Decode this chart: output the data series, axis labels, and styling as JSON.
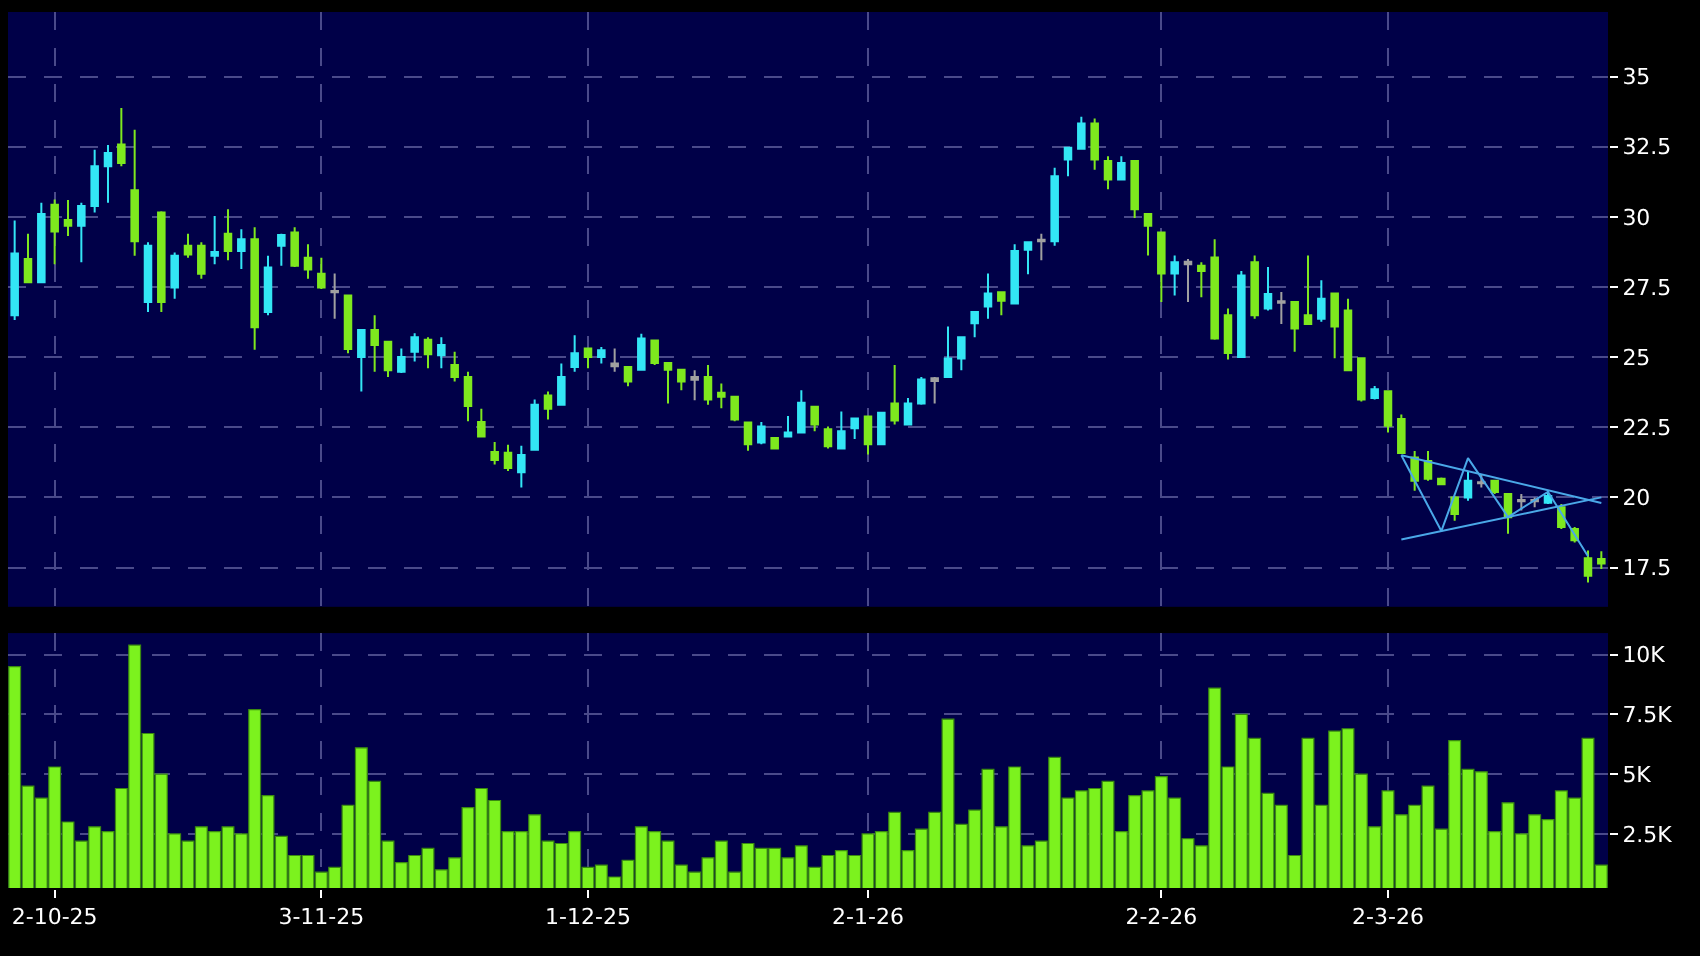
{
  "chart_data": [
    {
      "type": "candlestick",
      "categories": [
        null,
        null,
        null,
        "2-10-25",
        null,
        null,
        null,
        null,
        null,
        null,
        null,
        null,
        null,
        null,
        null,
        null,
        null,
        null,
        null,
        null,
        null,
        null,
        null,
        "3-11-25",
        null,
        null,
        null,
        null,
        null,
        null,
        null,
        null,
        null,
        null,
        null,
        null,
        null,
        null,
        null,
        null,
        null,
        null,
        null,
        "1-12-25",
        null,
        null,
        null,
        null,
        null,
        null,
        null,
        null,
        null,
        null,
        null,
        null,
        null,
        null,
        null,
        null,
        null,
        null,
        null,
        null,
        "2-1-26",
        null,
        null,
        null,
        null,
        null,
        null,
        null,
        null,
        null,
        null,
        null,
        null,
        null,
        null,
        null,
        null,
        null,
        null,
        null,
        null,
        null,
        "2-2-26",
        null,
        null,
        null,
        null,
        null,
        null,
        null,
        null,
        null,
        null,
        null,
        null,
        null,
        null,
        null,
        null,
        "2-3-26",
        null,
        null,
        null,
        null,
        null,
        null,
        null,
        null,
        null,
        null,
        null,
        null,
        null,
        null,
        null,
        null
      ],
      "ohlc": [
        [
          26.49,
          29.87,
          26.32,
          28.69
        ],
        [
          28.5,
          29.4,
          27.67,
          27.67
        ],
        [
          27.67,
          30.5,
          27.67,
          30.1
        ],
        [
          30.43,
          30.62,
          28.31,
          29.48
        ],
        [
          29.89,
          30.6,
          29.32,
          29.68
        ],
        [
          29.68,
          30.5,
          28.38,
          30.39
        ],
        [
          30.39,
          32.39,
          30.15,
          31.8
        ],
        [
          31.8,
          32.56,
          30.5,
          32.27
        ],
        [
          32.58,
          33.88,
          31.8,
          31.92
        ],
        [
          30.95,
          33.1,
          28.61,
          29.13
        ],
        [
          26.96,
          29.09,
          26.61,
          28.97
        ],
        [
          30.15,
          30.2,
          26.61,
          26.96
        ],
        [
          27.48,
          28.73,
          27.08,
          28.61
        ],
        [
          28.97,
          29.4,
          28.54,
          28.66
        ],
        [
          28.97,
          29.09,
          27.79,
          27.97
        ],
        [
          28.61,
          30.03,
          28.31,
          28.75
        ],
        [
          29.4,
          30.27,
          28.45,
          28.78
        ],
        [
          28.78,
          29.56,
          28.14,
          29.2
        ],
        [
          29.2,
          29.63,
          25.26,
          26.06
        ],
        [
          26.61,
          28.61,
          26.49,
          28.19
        ],
        [
          28.97,
          29.4,
          28.26,
          29.35
        ],
        [
          29.44,
          29.63,
          28.21,
          28.26
        ],
        [
          28.54,
          29.02,
          27.79,
          28.12
        ],
        [
          27.97,
          28.54,
          27.43,
          27.48
        ],
        [
          27.36,
          27.98,
          26.37,
          27.31
        ],
        [
          27.2,
          27.2,
          25.14,
          25.29
        ],
        [
          25.0,
          25.97,
          23.77,
          25.97
        ],
        [
          25.97,
          26.49,
          24.48,
          25.43
        ],
        [
          25.55,
          25.55,
          24.29,
          24.53
        ],
        [
          24.48,
          25.31,
          24.43,
          25.0
        ],
        [
          25.19,
          25.85,
          24.84,
          25.71
        ],
        [
          25.62,
          25.71,
          24.6,
          25.1
        ],
        [
          25.07,
          25.71,
          24.6,
          25.43
        ],
        [
          24.72,
          25.19,
          24.13,
          24.29
        ],
        [
          24.29,
          24.48,
          22.71,
          23.26
        ],
        [
          22.69,
          23.16,
          22.17,
          22.17
        ],
        [
          21.62,
          21.97,
          21.17,
          21.33
        ],
        [
          21.59,
          21.88,
          20.94,
          21.05
        ],
        [
          20.9,
          21.84,
          20.35,
          21.51
        ],
        [
          21.7,
          23.49,
          21.7,
          23.3
        ],
        [
          23.63,
          23.77,
          22.78,
          23.16
        ],
        [
          23.3,
          24.77,
          23.3,
          24.29
        ],
        [
          24.65,
          25.78,
          24.48,
          25.14
        ],
        [
          25.31,
          25.31,
          24.6,
          25.0
        ],
        [
          25.0,
          25.36,
          24.77,
          25.24
        ],
        [
          24.77,
          25.31,
          24.48,
          24.67
        ],
        [
          24.65,
          24.65,
          23.96,
          24.13
        ],
        [
          24.55,
          25.83,
          24.55,
          25.66
        ],
        [
          25.59,
          25.59,
          24.72,
          24.79
        ],
        [
          24.79,
          24.79,
          23.35,
          24.55
        ],
        [
          24.55,
          24.55,
          23.82,
          24.13
        ],
        [
          24.29,
          24.53,
          23.46,
          24.19
        ],
        [
          24.29,
          24.72,
          23.3,
          23.49
        ],
        [
          23.73,
          24.06,
          23.18,
          23.59
        ],
        [
          23.59,
          23.59,
          22.71,
          22.78
        ],
        [
          22.67,
          22.67,
          21.66,
          21.89
        ],
        [
          21.96,
          22.69,
          21.89,
          22.53
        ],
        [
          22.12,
          22.12,
          21.74,
          21.74
        ],
        [
          22.17,
          22.9,
          22.17,
          22.31
        ],
        [
          22.31,
          23.82,
          22.31,
          23.37
        ],
        [
          23.23,
          23.23,
          22.36,
          22.6
        ],
        [
          22.43,
          22.53,
          21.74,
          21.82
        ],
        [
          21.74,
          23.06,
          21.74,
          22.36
        ],
        [
          22.46,
          22.81,
          22.08,
          22.81
        ],
        [
          22.88,
          22.88,
          21.53,
          21.89
        ],
        [
          21.89,
          23.02,
          21.89,
          23.02
        ],
        [
          23.35,
          24.72,
          22.6,
          22.74
        ],
        [
          22.6,
          23.54,
          22.6,
          23.35
        ],
        [
          23.35,
          24.29,
          23.3,
          24.2
        ],
        [
          24.25,
          24.29,
          23.35,
          24.15
        ],
        [
          24.29,
          26.09,
          24.29,
          24.95
        ],
        [
          24.95,
          25.71,
          24.53,
          25.71
        ],
        [
          26.21,
          26.61,
          25.71,
          26.61
        ],
        [
          26.8,
          27.98,
          26.37,
          27.27
        ],
        [
          27.31,
          27.31,
          26.49,
          27.01
        ],
        [
          26.91,
          29.02,
          26.91,
          28.78
        ],
        [
          28.83,
          29.09,
          27.95,
          29.09
        ],
        [
          29.13,
          29.4,
          28.45,
          29.18
        ],
        [
          29.13,
          31.75,
          28.97,
          31.45
        ],
        [
          32.04,
          32.46,
          31.45,
          32.46
        ],
        [
          32.43,
          33.57,
          32.39,
          33.33
        ],
        [
          33.33,
          33.5,
          31.68,
          32.04
        ],
        [
          31.99,
          32.16,
          30.98,
          31.33
        ],
        [
          31.33,
          32.16,
          31.33,
          31.92
        ],
        [
          31.99,
          31.99,
          29.96,
          30.27
        ],
        [
          30.1,
          30.1,
          28.62,
          29.68
        ],
        [
          29.44,
          29.44,
          26.96,
          27.98
        ],
        [
          27.98,
          28.62,
          27.2,
          28.38
        ],
        [
          28.4,
          28.5,
          26.96,
          28.31
        ],
        [
          28.26,
          28.38,
          27.13,
          28.07
        ],
        [
          28.55,
          29.2,
          25.62,
          25.66
        ],
        [
          26.49,
          26.73,
          24.91,
          25.15
        ],
        [
          25.0,
          28.07,
          25.0,
          27.91
        ],
        [
          28.38,
          28.62,
          26.37,
          26.49
        ],
        [
          26.73,
          28.21,
          26.66,
          27.25
        ],
        [
          26.99,
          27.32,
          26.18,
          26.94
        ],
        [
          26.96,
          26.96,
          25.19,
          26.02
        ],
        [
          26.49,
          28.62,
          26.14,
          26.18
        ],
        [
          26.37,
          27.74,
          26.26,
          27.08
        ],
        [
          27.27,
          27.27,
          24.96,
          26.09
        ],
        [
          26.66,
          27.08,
          24.53,
          24.53
        ],
        [
          24.96,
          24.96,
          23.42,
          23.49
        ],
        [
          23.54,
          23.97,
          23.49,
          23.85
        ],
        [
          23.78,
          23.78,
          22.31,
          22.55
        ],
        [
          22.79,
          22.95,
          21.58,
          21.58
        ],
        [
          21.42,
          21.65,
          20.24,
          20.59
        ],
        [
          21.3,
          21.65,
          20.59,
          20.66
        ],
        [
          20.66,
          20.71,
          20.47,
          20.47
        ],
        [
          20.0,
          20.05,
          19.17,
          19.41
        ],
        [
          20.0,
          20.94,
          19.88,
          20.59
        ],
        [
          20.54,
          20.83,
          20.35,
          20.5
        ],
        [
          20.59,
          20.59,
          20.12,
          20.19
        ],
        [
          20.12,
          20.12,
          18.7,
          19.29
        ],
        [
          19.91,
          20.12,
          19.53,
          19.86
        ],
        [
          19.91,
          20.0,
          19.65,
          19.86
        ],
        [
          19.81,
          20.24,
          19.76,
          20.05
        ],
        [
          19.65,
          19.76,
          18.87,
          18.94
        ],
        [
          18.87,
          18.94,
          18.39,
          18.47
        ],
        [
          17.83,
          18.11,
          16.97,
          17.21
        ],
        [
          17.8,
          18.08,
          17.45,
          17.64
        ]
      ],
      "colors": [
        "#33e6f5",
        "#7ee81e",
        "#33e6f5",
        "#7ee81e",
        "#7ee81e",
        "#33e6f5",
        "#33e6f5",
        "#33e6f5",
        "#7ee81e",
        "#7ee81e",
        "#33e6f5",
        "#7ee81e",
        "#33e6f5",
        "#7ee81e",
        "#7ee81e",
        "#33e6f5",
        "#7ee81e",
        "#33e6f5",
        "#7ee81e",
        "#33e6f5",
        "#33e6f5",
        "#7ee81e",
        "#7ee81e",
        "#7ee81e",
        "#a0a0a0",
        "#7ee81e",
        "#33e6f5",
        "#7ee81e",
        "#7ee81e",
        "#33e6f5",
        "#33e6f5",
        "#7ee81e",
        "#33e6f5",
        "#7ee81e",
        "#7ee81e",
        "#7ee81e",
        "#7ee81e",
        "#7ee81e",
        "#33e6f5",
        "#33e6f5",
        "#7ee81e",
        "#33e6f5",
        "#33e6f5",
        "#7ee81e",
        "#33e6f5",
        "#a0a0a0",
        "#7ee81e",
        "#33e6f5",
        "#7ee81e",
        "#7ee81e",
        "#7ee81e",
        "#a0a0a0",
        "#7ee81e",
        "#7ee81e",
        "#7ee81e",
        "#7ee81e",
        "#33e6f5",
        "#7ee81e",
        "#33e6f5",
        "#33e6f5",
        "#7ee81e",
        "#7ee81e",
        "#33e6f5",
        "#33e6f5",
        "#7ee81e",
        "#33e6f5",
        "#7ee81e",
        "#33e6f5",
        "#33e6f5",
        "#a0a0a0",
        "#33e6f5",
        "#33e6f5",
        "#33e6f5",
        "#33e6f5",
        "#7ee81e",
        "#33e6f5",
        "#33e6f5",
        "#a0a0a0",
        "#33e6f5",
        "#33e6f5",
        "#33e6f5",
        "#7ee81e",
        "#7ee81e",
        "#33e6f5",
        "#7ee81e",
        "#7ee81e",
        "#7ee81e",
        "#33e6f5",
        "#a0a0a0",
        "#7ee81e",
        "#7ee81e",
        "#7ee81e",
        "#33e6f5",
        "#7ee81e",
        "#33e6f5",
        "#a0a0a0",
        "#7ee81e",
        "#7ee81e",
        "#33e6f5",
        "#7ee81e",
        "#7ee81e",
        "#7ee81e",
        "#33e6f5",
        "#7ee81e",
        "#7ee81e",
        "#7ee81e",
        "#7ee81e",
        "#7ee81e",
        "#7ee81e",
        "#33e6f5",
        "#a0a0a0",
        "#7ee81e",
        "#7ee81e",
        "#a0a0a0",
        "#a0a0a0",
        "#33e6f5",
        "#7ee81e",
        "#7ee81e",
        "#7ee81e",
        "#7ee81e"
      ],
      "series": [
        {
          "type": "line",
          "color": "#4aa8e8",
          "values": [
            null,
            null,
            null,
            null,
            null,
            null,
            null,
            null,
            null,
            null,
            null,
            null,
            null,
            null,
            null,
            null,
            null,
            null,
            null,
            null,
            null,
            null,
            null,
            null,
            null,
            null,
            null,
            null,
            null,
            null,
            null,
            null,
            null,
            null,
            null,
            null,
            null,
            null,
            null,
            null,
            null,
            null,
            null,
            null,
            null,
            null,
            null,
            null,
            null,
            null,
            null,
            null,
            null,
            null,
            null,
            null,
            null,
            null,
            null,
            null,
            null,
            null,
            null,
            null,
            null,
            null,
            null,
            null,
            null,
            null,
            null,
            null,
            null,
            null,
            null,
            null,
            null,
            null,
            null,
            null,
            null,
            null,
            null,
            null,
            null,
            null,
            null,
            null,
            null,
            null,
            null,
            null,
            null,
            null,
            null,
            null,
            null,
            null,
            null,
            null,
            null,
            null,
            null,
            null,
            21.5,
            null,
            null,
            null,
            null,
            null,
            null,
            null,
            null,
            null,
            null,
            null,
            null,
            null,
            null,
            19.8
          ]
        },
        {
          "type": "line",
          "color": "#4aa8e8",
          "values": [
            null,
            null,
            null,
            null,
            null,
            null,
            null,
            null,
            null,
            null,
            null,
            null,
            null,
            null,
            null,
            null,
            null,
            null,
            null,
            null,
            null,
            null,
            null,
            null,
            null,
            null,
            null,
            null,
            null,
            null,
            null,
            null,
            null,
            null,
            null,
            null,
            null,
            null,
            null,
            null,
            null,
            null,
            null,
            null,
            null,
            null,
            null,
            null,
            null,
            null,
            null,
            null,
            null,
            null,
            null,
            null,
            null,
            null,
            null,
            null,
            null,
            null,
            null,
            null,
            null,
            null,
            null,
            null,
            null,
            null,
            null,
            null,
            null,
            null,
            null,
            null,
            null,
            null,
            null,
            null,
            null,
            null,
            null,
            null,
            null,
            null,
            null,
            null,
            null,
            null,
            null,
            null,
            null,
            null,
            null,
            null,
            null,
            null,
            null,
            null,
            null,
            null,
            null,
            null,
            18.5,
            null,
            null,
            null,
            null,
            null,
            null,
            null,
            null,
            null,
            null,
            null,
            null,
            null,
            null,
            20.0
          ]
        },
        {
          "type": "line",
          "color": "#4aa8e8",
          "values": [
            null,
            null,
            null,
            null,
            null,
            null,
            null,
            null,
            null,
            null,
            null,
            null,
            null,
            null,
            null,
            null,
            null,
            null,
            null,
            null,
            null,
            null,
            null,
            null,
            null,
            null,
            null,
            null,
            null,
            null,
            null,
            null,
            null,
            null,
            null,
            null,
            null,
            null,
            null,
            null,
            null,
            null,
            null,
            null,
            null,
            null,
            null,
            null,
            null,
            null,
            null,
            null,
            null,
            null,
            null,
            null,
            null,
            null,
            null,
            null,
            null,
            null,
            null,
            null,
            null,
            null,
            null,
            null,
            null,
            null,
            null,
            null,
            null,
            null,
            null,
            null,
            null,
            null,
            null,
            null,
            null,
            null,
            null,
            null,
            null,
            null,
            null,
            null,
            null,
            null,
            null,
            null,
            null,
            null,
            null,
            null,
            null,
            null,
            null,
            null,
            null,
            null,
            null,
            null,
            21.5,
            null,
            null,
            18.8,
            null,
            21.4,
            null,
            null,
            19.3,
            null,
            null,
            20.2,
            null,
            null,
            17.9,
            null
          ]
        }
      ],
      "ylim": [
        16.1,
        37.3
      ],
      "yticks": [
        17.5,
        20,
        22.5,
        25,
        27.5,
        30,
        32.5,
        35
      ],
      "tick_labels": "y",
      "grid": true
    },
    {
      "type": "bar",
      "categories": [
        null,
        null,
        null,
        "2-10-25",
        null,
        null,
        null,
        null,
        null,
        null,
        null,
        null,
        null,
        null,
        null,
        null,
        null,
        null,
        null,
        null,
        null,
        null,
        null,
        "3-11-25",
        null,
        null,
        null,
        null,
        null,
        null,
        null,
        null,
        null,
        null,
        null,
        null,
        null,
        null,
        null,
        null,
        null,
        null,
        null,
        "1-12-25",
        null,
        null,
        null,
        null,
        null,
        null,
        null,
        null,
        null,
        null,
        null,
        null,
        null,
        null,
        null,
        null,
        null,
        null,
        null,
        null,
        "2-1-26",
        null,
        null,
        null,
        null,
        null,
        null,
        null,
        null,
        null,
        null,
        null,
        null,
        null,
        null,
        null,
        null,
        null,
        null,
        null,
        null,
        null,
        "2-2-26",
        null,
        null,
        null,
        null,
        null,
        null,
        null,
        null,
        null,
        null,
        null,
        null,
        null,
        null,
        null,
        null,
        "2-3-26",
        null,
        null,
        null,
        null,
        null,
        null,
        null,
        null,
        null,
        null,
        null,
        null,
        null,
        null,
        null,
        null
      ],
      "values": [
        9.5,
        4.5,
        4.0,
        5.3,
        3.0,
        2.2,
        2.8,
        2.6,
        4.4,
        10.4,
        6.7,
        5.0,
        2.5,
        2.2,
        2.8,
        2.6,
        2.8,
        2.5,
        7.7,
        4.1,
        2.4,
        1.6,
        1.6,
        0.9,
        1.1,
        3.7,
        6.1,
        4.7,
        2.2,
        1.3,
        1.6,
        1.9,
        1.0,
        1.5,
        3.6,
        4.4,
        3.9,
        2.6,
        2.6,
        3.3,
        2.2,
        2.1,
        2.6,
        1.1,
        1.2,
        0.7,
        1.4,
        2.8,
        2.6,
        2.2,
        1.2,
        0.9,
        1.5,
        2.2,
        0.9,
        2.1,
        1.9,
        1.9,
        1.5,
        2.0,
        1.1,
        1.6,
        1.8,
        1.6,
        2.5,
        2.6,
        3.4,
        1.8,
        2.7,
        3.4,
        7.3,
        2.9,
        3.5,
        5.2,
        2.8,
        5.3,
        2.0,
        2.2,
        5.7,
        4.0,
        4.3,
        4.4,
        4.7,
        2.6,
        4.1,
        4.3,
        4.9,
        4.0,
        2.3,
        2.0,
        8.6,
        5.3,
        7.5,
        6.5,
        4.2,
        3.7,
        1.6,
        6.5,
        3.7,
        6.8,
        6.9,
        5.0,
        2.8,
        4.3,
        3.3,
        3.7,
        4.5,
        2.7,
        6.4,
        5.2,
        5.1,
        2.6,
        3.8,
        2.5,
        3.3,
        3.1,
        4.3,
        4.0,
        6.5,
        1.2
      ],
      "color": "#7cf21e",
      "ylim": [
        0.24,
        10.9
      ],
      "yticks": [
        {
          "value": 2.5,
          "label": "2.5K"
        },
        {
          "value": 5,
          "label": "5K"
        },
        {
          "value": 7.5,
          "label": "7.5K"
        },
        {
          "value": 10,
          "label": "10K"
        }
      ],
      "grid": true
    }
  ]
}
